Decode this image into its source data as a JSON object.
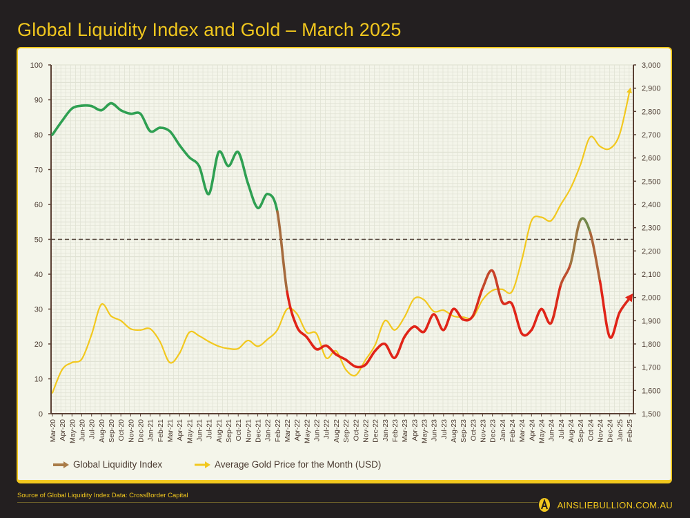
{
  "title": "Global Liquidity Index and Gold – March 2025",
  "source": "Source of Global Liquidity Index Data: CrossBorder Capital",
  "brand": {
    "logo_letter": "A",
    "url": "AINSLIEBULLION.COM.AU"
  },
  "colors": {
    "background": "#231f20",
    "card": "#f4f5ea",
    "accent": "#f2c81e",
    "gli_high": "#2fa052",
    "gli_mid": "#9a7a45",
    "gli_low": "#e02418",
    "gold": "#f2c81e",
    "threshold": "#4a3a30"
  },
  "chart_data": {
    "type": "line",
    "title": "Global Liquidity Index and Gold – March 2025",
    "xlabel": "",
    "ylabel": "",
    "y2label": "",
    "ylim": [
      0,
      100
    ],
    "y2lim": [
      1500,
      3000
    ],
    "yticks": [
      0,
      10,
      20,
      30,
      40,
      50,
      60,
      70,
      80,
      90,
      100
    ],
    "y2ticks": [
      "1,500",
      "1,600",
      "1,700",
      "1,800",
      "1,900",
      "2,000",
      "2,100",
      "2,200",
      "2,300",
      "2,400",
      "2,500",
      "2,600",
      "2,700",
      "2,800",
      "2,900",
      "3,000"
    ],
    "grid": true,
    "legend_position": "bottom-left",
    "reference_line": {
      "axis": "left",
      "value": 50,
      "style": "dashed"
    },
    "categories": [
      "Mar-20",
      "Apr-20",
      "May-20",
      "Jun-20",
      "Jul-20",
      "Aug-20",
      "Sep-20",
      "Oct-20",
      "Nov-20",
      "Dec-20",
      "Jan-21",
      "Feb-21",
      "Mar-21",
      "Apr-21",
      "May-21",
      "Jun-21",
      "Jul-21",
      "Aug-21",
      "Sep-21",
      "Oct-21",
      "Nov-21",
      "Dec-21",
      "Jan-22",
      "Feb-22",
      "Mar-22",
      "Apr-22",
      "May-22",
      "Jun-22",
      "Jul-22",
      "Aug-22",
      "Sep-22",
      "Oct-22",
      "Nov-22",
      "Dec-22",
      "Jan-23",
      "Feb-23",
      "Mar-23",
      "Apr-23",
      "May-23",
      "Jun-23",
      "Jul-23",
      "Aug-23",
      "Sep-23",
      "Oct-23",
      "Nov-23",
      "Dec-23",
      "Jan-24",
      "Feb-24",
      "Mar-24",
      "Apr-24",
      "May-24",
      "Jun-24",
      "Jul-24",
      "Aug-24",
      "Sep-24",
      "Oct-24",
      "Nov-24",
      "Dec-24",
      "Jan-25",
      "Feb-25"
    ],
    "series": [
      {
        "name": "Global Liquidity Index",
        "axis": "left",
        "values": [
          80,
          84,
          87.5,
          88.3,
          88.2,
          87,
          89,
          87,
          86,
          86,
          81,
          82,
          81,
          77,
          73.5,
          71,
          63,
          75,
          71,
          75,
          66,
          59,
          63,
          58,
          35,
          25,
          22,
          18.5,
          19.5,
          17,
          15.5,
          13.5,
          14,
          18,
          20,
          16,
          22,
          25,
          23.5,
          28.5,
          24,
          30,
          27,
          28,
          36,
          41,
          32,
          31.5,
          23,
          24,
          30,
          26,
          37,
          43,
          55.5,
          52,
          38,
          22,
          29,
          33
        ]
      },
      {
        "name": "Average Gold Price for the Month (USD)",
        "axis": "right",
        "values": [
          1590,
          1690,
          1720,
          1735,
          1840,
          1970,
          1920,
          1900,
          1865,
          1860,
          1865,
          1810,
          1720,
          1760,
          1850,
          1835,
          1810,
          1790,
          1780,
          1780,
          1815,
          1790,
          1820,
          1860,
          1950,
          1930,
          1850,
          1845,
          1740,
          1770,
          1690,
          1665,
          1730,
          1795,
          1900,
          1860,
          1915,
          1995,
          1990,
          1940,
          1945,
          1920,
          1915,
          1915,
          1990,
          2030,
          2035,
          2025,
          2160,
          2330,
          2345,
          2330,
          2400,
          2470,
          2570,
          2690,
          2650,
          2640,
          2700,
          2880
        ]
      }
    ]
  }
}
